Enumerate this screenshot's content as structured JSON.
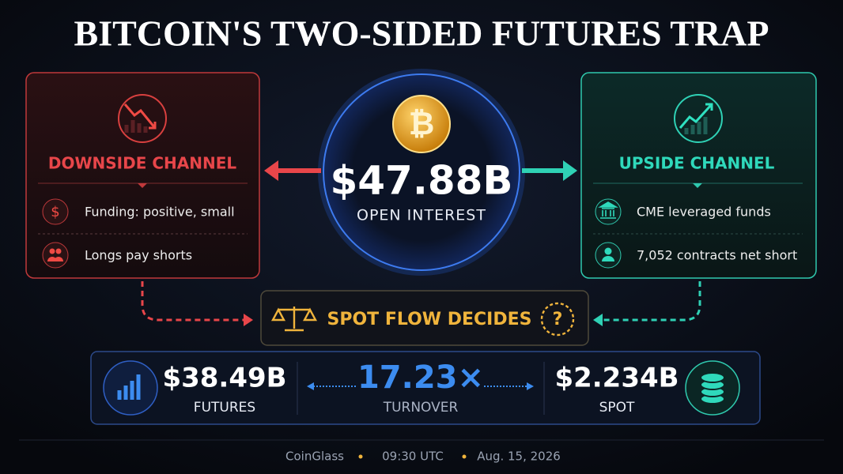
{
  "title": "BITCOIN'S TWO-SIDED FUTURES TRAP",
  "downside": {
    "heading": "DOWNSIDE CHANNEL",
    "items": [
      {
        "icon": "$",
        "text": "Funding: positive, small"
      },
      {
        "text": "Longs pay shorts"
      }
    ]
  },
  "center": {
    "coin": "₿",
    "value": "$47.88B",
    "label": "OPEN INTEREST"
  },
  "upside": {
    "heading": "UPSIDE CHANNEL",
    "items": [
      {
        "text": "CME leveraged funds"
      },
      {
        "text": "7,052 contracts net short"
      }
    ]
  },
  "decision": {
    "text": "SPOT FLOW DECIDES",
    "icon": "?"
  },
  "stats": [
    {
      "value": "$38.49B",
      "label": "FUTURES"
    },
    {
      "value": "17.23×",
      "label": "TURNOVER"
    },
    {
      "value": "$2.234B",
      "label": "SPOT"
    }
  ],
  "footer": [
    "CoinGlass",
    "09:30 UTC",
    "Aug. 15, 2026"
  ]
}
